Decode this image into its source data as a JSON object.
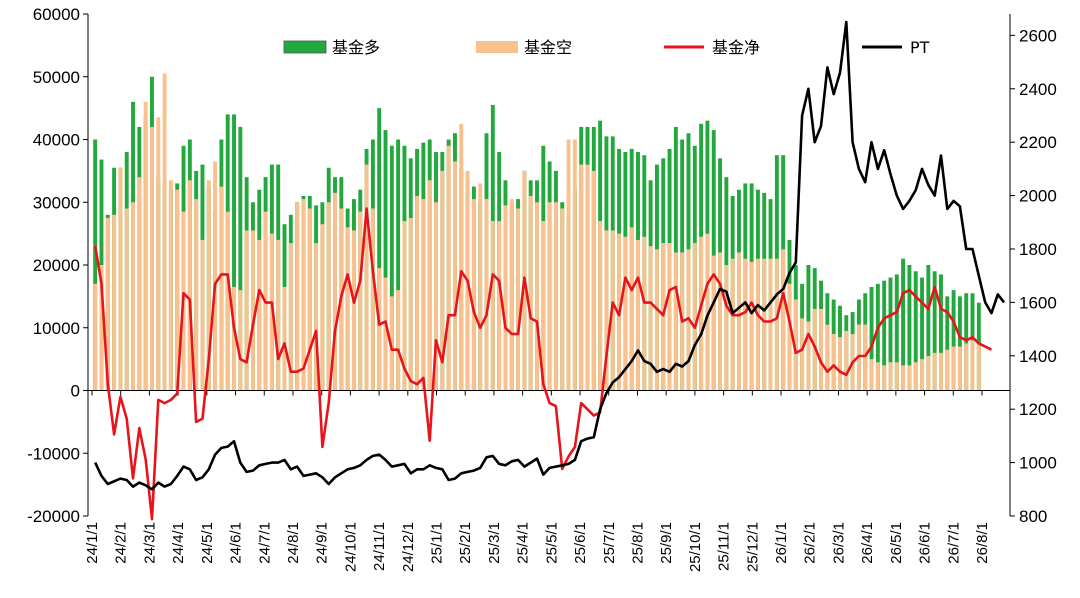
{
  "chart_data": {
    "type": "bar+line",
    "title": "",
    "x_tick_labels": [
      "24/1/1",
      "24/2/1",
      "24/3/1",
      "24/4/1",
      "24/5/1",
      "24/6/1",
      "24/7/1",
      "24/8/1",
      "24/9/1",
      "24/10/1",
      "24/11/1",
      "24/12/1",
      "25/1/1",
      "25/2/1",
      "25/3/1",
      "25/4/1",
      "25/5/1",
      "25/6/1",
      "25/7/1",
      "25/8/1",
      "25/9/1",
      "25/10/1",
      "25/11/1",
      "25/12/1",
      "26/1/1",
      "26/2/1",
      "26/3/1",
      "26/4/1",
      "26/5/1",
      "26/6/1",
      "26/7/1",
      "26/8/1"
    ],
    "x_range": [
      "24/1/1",
      "26/8/1"
    ],
    "y_left": {
      "range": [
        -20000,
        60000
      ],
      "ticks": [
        -20000,
        -10000,
        0,
        10000,
        20000,
        30000,
        40000,
        50000,
        60000
      ],
      "tick_labels": [
        "-20000",
        "-10000",
        "0",
        "10000",
        "20000",
        "30000",
        "40000",
        "50000",
        "60000"
      ]
    },
    "y_right": {
      "range": [
        800,
        2680
      ],
      "ticks": [
        800,
        1000,
        1200,
        1400,
        1600,
        1800,
        2000,
        2200,
        2400,
        2600
      ],
      "tick_labels": [
        "800",
        "1000",
        "1200",
        "1400",
        "1600",
        "1800",
        "2000",
        "2200",
        "2400",
        "2600"
      ]
    },
    "grid": false,
    "legend_position": "top",
    "series": [
      {
        "name": "基金多",
        "type": "bar",
        "axis": "left",
        "color": "#22a83c",
        "values": [
          40000,
          36800,
          28000,
          35500,
          35500,
          38000,
          46000,
          42000,
          43500,
          50000,
          34000,
          33000,
          32000,
          33000,
          39000,
          40000,
          35000,
          36000,
          32500,
          28500,
          40000,
          44000,
          44000,
          42000,
          34000,
          30000,
          32000,
          34000,
          36000,
          36000,
          26500,
          28000,
          30000,
          31000,
          31000,
          29500,
          30000,
          35500,
          34000,
          34000,
          29000,
          30500,
          32000,
          38500,
          40000,
          45000,
          41500,
          39000,
          40000,
          39000,
          37000,
          38500,
          39500,
          40000,
          38000,
          38000,
          40000,
          41000,
          35500,
          33500,
          32500,
          30000,
          41000,
          45500,
          38000,
          33500,
          30000,
          30500,
          35000,
          33500,
          33500,
          39000,
          36500,
          35000,
          30000,
          27500,
          32000,
          42000,
          42000,
          42000,
          43000,
          40500,
          40500,
          38500,
          38000,
          38500,
          38000,
          37500,
          33500,
          36000,
          37000,
          38500,
          42000,
          40000,
          41000,
          39000,
          42500,
          43000,
          41500,
          37000,
          34000,
          31000,
          32000,
          33000,
          33000,
          32000,
          31500,
          30500,
          37500,
          37500,
          24000,
          20000,
          17000,
          20000,
          19500,
          17500,
          15500,
          14500,
          13500,
          12000,
          12500,
          14500,
          15500,
          16500,
          17000,
          17500,
          18000,
          18500,
          21000,
          20000,
          19000,
          18000,
          20000,
          19000,
          18500,
          15000,
          16000,
          15000,
          15500,
          15500,
          14000
        ]
      },
      {
        "name": "基金空",
        "type": "bar",
        "axis": "left",
        "color": "#f8c18e",
        "values": [
          17000,
          20000,
          27500,
          28000,
          35500,
          29000,
          30000,
          34000,
          46000,
          42000,
          43500,
          50500,
          33500,
          32000,
          28500,
          33500,
          30500,
          24000,
          33500,
          36500,
          32500,
          28500,
          16500,
          16000,
          25500,
          25500,
          24000,
          28500,
          25000,
          24000,
          16500,
          23500,
          30000,
          30500,
          29000,
          23500,
          26500,
          30000,
          31500,
          29000,
          26000,
          25500,
          28500,
          36000,
          29000,
          19500,
          18000,
          15000,
          16000,
          27000,
          27500,
          31000,
          30500,
          33500,
          30000,
          35000,
          39000,
          36500,
          42500,
          35000,
          30500,
          33000,
          30500,
          27000,
          27000,
          29500,
          30500,
          29000,
          35000,
          31000,
          30000,
          27000,
          30000,
          30000,
          29000,
          40000,
          40000,
          36000,
          36000,
          35000,
          27000,
          25500,
          25500,
          25000,
          24500,
          26000,
          24000,
          24500,
          23000,
          22500,
          23500,
          23500,
          22000,
          22000,
          22500,
          23500,
          24500,
          25000,
          21500,
          22000,
          20000,
          21000,
          22000,
          21000,
          20500,
          21000,
          21000,
          21000,
          21000,
          22500,
          17000,
          14500,
          11500,
          11000,
          13000,
          13000,
          10500,
          9000,
          8500,
          9500,
          9000,
          10500,
          10500,
          5000,
          4500,
          4000,
          4500,
          4500,
          4000,
          4000,
          4500,
          5000,
          5500,
          6000,
          6000,
          6500,
          7000,
          7000,
          7500,
          8000,
          7500
        ]
      },
      {
        "name": "基金净",
        "type": "line",
        "axis": "left",
        "color": "#e8141c",
        "values": [
          23000,
          17000,
          1000,
          -7000,
          -1000,
          -4500,
          -14000,
          -6000,
          -11000,
          -20500,
          -1500,
          -2000,
          -1500,
          -500,
          15500,
          14500,
          -5000,
          -4500,
          5000,
          17000,
          18500,
          18500,
          10000,
          5000,
          4500,
          10500,
          16000,
          14000,
          14000,
          5000,
          7500,
          3000,
          3000,
          3500,
          6500,
          9500,
          -9000,
          -2000,
          9500,
          15000,
          18500,
          14000,
          17500,
          29000,
          19000,
          10500,
          11000,
          6500,
          6500,
          3500,
          1500,
          1000,
          2000,
          -8000,
          8000,
          4500,
          12000,
          12000,
          19000,
          17500,
          12500,
          10000,
          12000,
          18500,
          17500,
          10000,
          9000,
          9000,
          18000,
          11500,
          11000,
          1000,
          -2000,
          -2500,
          -12500,
          -10500,
          -9000,
          -2000,
          -3000,
          -4000,
          -3500,
          5500,
          14000,
          12000,
          18000,
          16000,
          18000,
          14000,
          14000,
          13000,
          12000,
          16000,
          16500,
          11000,
          11500,
          10000,
          13500,
          17000,
          18500,
          17000,
          13500,
          12000,
          12000,
          12500,
          14000,
          12000,
          11000,
          11000,
          11500,
          15500,
          11000,
          6000,
          6500,
          9000,
          7000,
          4500,
          3000,
          4000,
          3000,
          2500,
          4500,
          5500,
          5500,
          7000,
          10000,
          11500,
          12000,
          12500,
          15500,
          16000,
          15000,
          14000,
          13000,
          16500,
          13000,
          12500,
          11000,
          8500,
          8000,
          8500,
          7500,
          7000,
          6500
        ]
      },
      {
        "name": "PT",
        "type": "line",
        "axis": "right",
        "color": "#000000",
        "values": [
          1000,
          950,
          920,
          930,
          940,
          935,
          910,
          925,
          915,
          900,
          925,
          910,
          920,
          950,
          985,
          975,
          935,
          945,
          975,
          1030,
          1055,
          1060,
          1080,
          1000,
          965,
          970,
          990,
          995,
          1000,
          1000,
          1010,
          975,
          985,
          950,
          955,
          960,
          945,
          920,
          945,
          960,
          975,
          980,
          990,
          1010,
          1025,
          1030,
          1010,
          985,
          990,
          995,
          960,
          975,
          975,
          990,
          980,
          975,
          935,
          940,
          960,
          965,
          970,
          980,
          1020,
          1025,
          995,
          990,
          1005,
          1010,
          985,
          1000,
          1015,
          955,
          980,
          985,
          990,
          995,
          1010,
          1080,
          1090,
          1095,
          1200,
          1260,
          1300,
          1320,
          1350,
          1380,
          1420,
          1380,
          1370,
          1340,
          1350,
          1340,
          1370,
          1360,
          1380,
          1440,
          1480,
          1550,
          1600,
          1650,
          1640,
          1560,
          1580,
          1600,
          1560,
          1590,
          1570,
          1600,
          1630,
          1650,
          1710,
          1750,
          2300,
          2400,
          2200,
          2260,
          2480,
          2380,
          2460,
          2650,
          2200,
          2100,
          2050,
          2200,
          2100,
          2170,
          2080,
          2000,
          1950,
          1980,
          2020,
          2100,
          2040,
          2000,
          2150,
          1950,
          1980,
          1960,
          1800,
          1800,
          1700,
          1600,
          1560,
          1630,
          1600
        ]
      }
    ]
  }
}
